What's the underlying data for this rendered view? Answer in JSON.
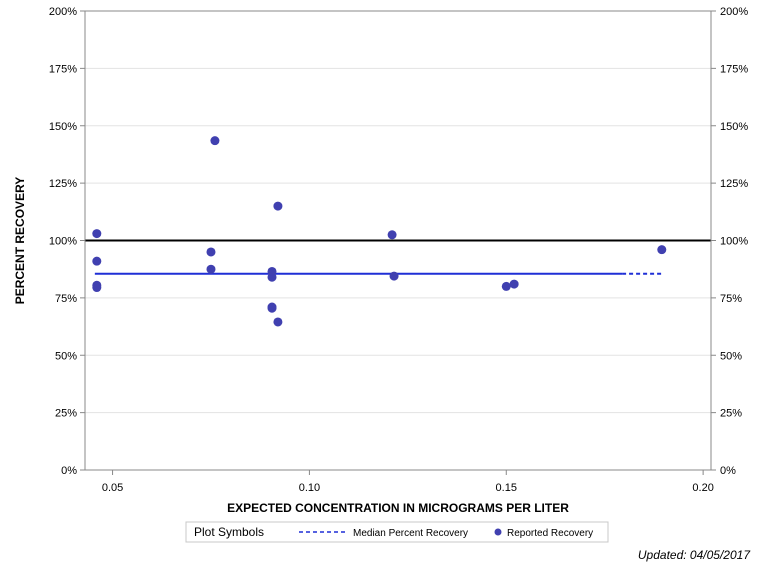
{
  "chart_data": {
    "type": "scatter",
    "xlabel": "EXPECTED CONCENTRATION IN MICROGRAMS PER LITER",
    "ylabel": "PERCENT RECOVERY",
    "xlim": [
      0.043,
      0.202
    ],
    "ylim": [
      0,
      200
    ],
    "x_ticks": [
      0.05,
      0.1,
      0.15,
      0.2
    ],
    "x_tick_labels": [
      "0.05",
      "0.10",
      "0.15",
      "0.20"
    ],
    "y_ticks": [
      0,
      25,
      50,
      75,
      100,
      125,
      150,
      175,
      200
    ],
    "y_tick_labels": [
      "0%",
      "25%",
      "50%",
      "75%",
      "100%",
      "125%",
      "150%",
      "175%",
      "200%"
    ],
    "grid": true,
    "reference_line": {
      "y": 100,
      "color": "#000000"
    },
    "median_line": {
      "name": "Median Percent Recovery",
      "y": 85.5,
      "x_start": 0.0455,
      "x_end": 0.1895,
      "color": "#1f2fd6"
    },
    "series": [
      {
        "name": "Reported Recovery",
        "color": "#4040b0",
        "points": [
          [
            0.046,
            103
          ],
          [
            0.046,
            91
          ],
          [
            0.046,
            80.5
          ],
          [
            0.046,
            79.5
          ],
          [
            0.075,
            95
          ],
          [
            0.075,
            87.5
          ],
          [
            0.076,
            143.5
          ],
          [
            0.0905,
            86.5
          ],
          [
            0.0905,
            84
          ],
          [
            0.0905,
            71
          ],
          [
            0.0905,
            70.5
          ],
          [
            0.092,
            115
          ],
          [
            0.092,
            64.5
          ],
          [
            0.121,
            102.5
          ],
          [
            0.1215,
            84.5
          ],
          [
            0.15,
            80
          ],
          [
            0.152,
            81
          ],
          [
            0.1895,
            96
          ]
        ]
      }
    ],
    "legend": {
      "title": "Plot Symbols",
      "position": "bottom",
      "items": [
        {
          "label": "Median Percent Recovery",
          "symbol": "dashed-line",
          "color": "#1f2fd6"
        },
        {
          "label": "Reported Recovery",
          "symbol": "dot",
          "color": "#4040b0"
        }
      ]
    }
  },
  "footer": {
    "updated": "Updated: 04/05/2017"
  }
}
